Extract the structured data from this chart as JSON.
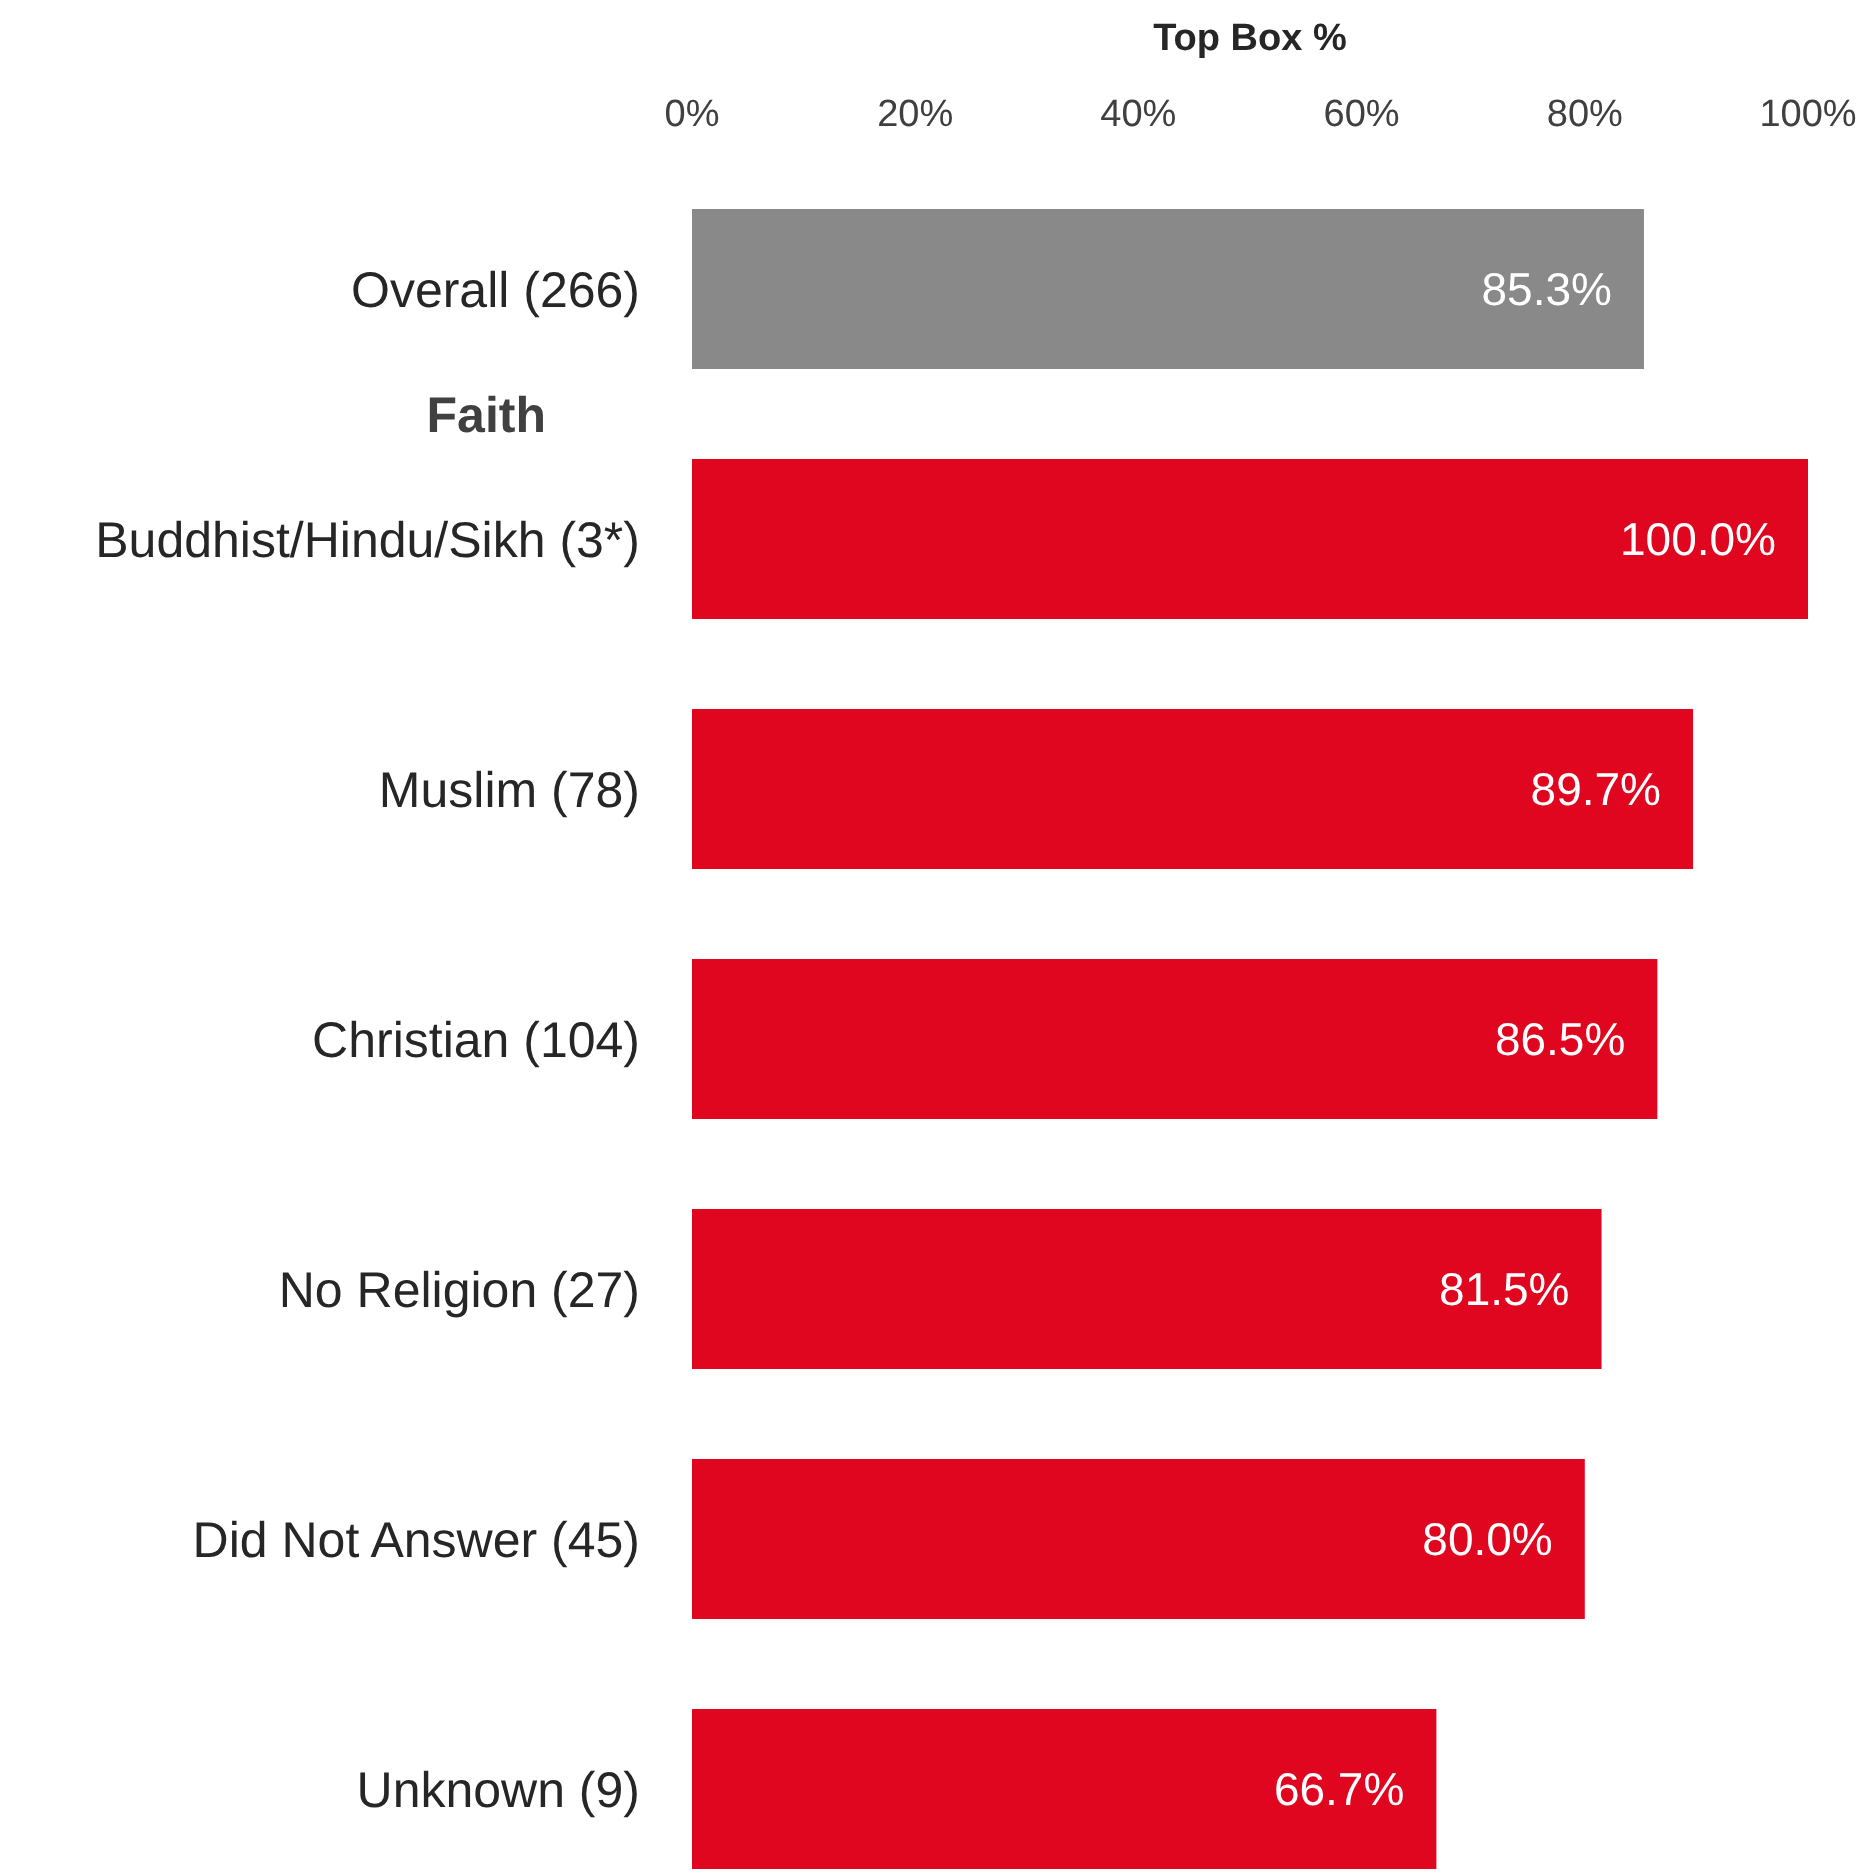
{
  "chart_data": {
    "type": "bar",
    "orientation": "horizontal",
    "xlabel": "Top Box %",
    "categories": [
      "Overall (266)",
      "Buddhist/Hindu/Sikh (3*)",
      "Muslim (78)",
      "Christian (104)",
      "No Religion (27)",
      "Did Not Answer (45)",
      "Unknown (9)"
    ],
    "values": [
      85.3,
      100.0,
      89.7,
      86.5,
      81.5,
      80.0,
      66.7
    ],
    "colors": [
      "#898989",
      "#e0061f",
      "#e0061f",
      "#e0061f",
      "#e0061f",
      "#e0061f",
      "#e0061f"
    ],
    "value_labels": [
      "85.3%",
      "100.0%",
      "89.7%",
      "86.5%",
      "81.5%",
      "80.0%",
      "66.7%"
    ],
    "xlim": [
      0,
      100
    ],
    "xticks": [
      {
        "value": 0,
        "label": "0%"
      },
      {
        "value": 20,
        "label": "20%"
      },
      {
        "value": 40,
        "label": "40%"
      },
      {
        "value": 60,
        "label": "60%"
      },
      {
        "value": 80,
        "label": "80%"
      },
      {
        "value": 100,
        "label": "100%"
      }
    ],
    "annotations": [
      "Faith"
    ],
    "grid": false
  }
}
